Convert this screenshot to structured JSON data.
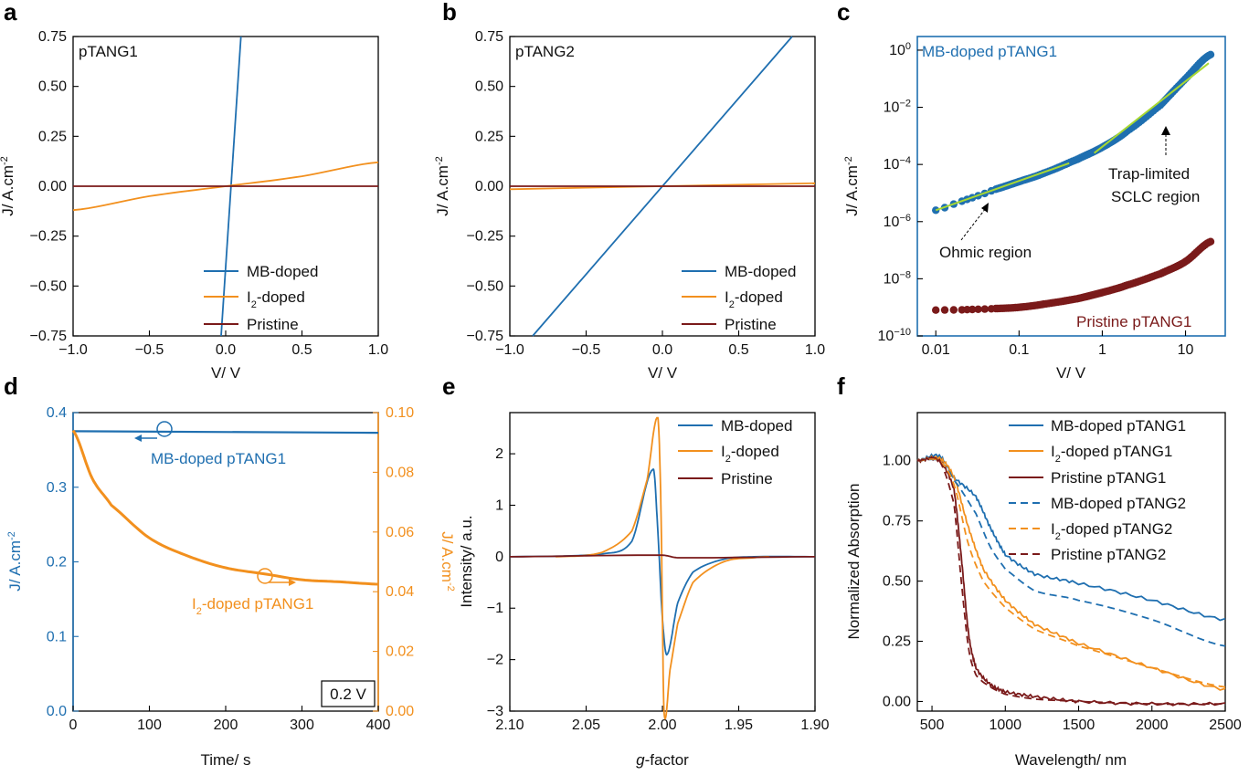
{
  "colors": {
    "mb": "#1f6fb0",
    "i2": "#f2901e",
    "pristine": "#7a1a1a",
    "fit": "#a8d832"
  },
  "chart_data": [
    {
      "panel": "a",
      "type": "line",
      "inset_label": "pTANG1",
      "xlabel": "V/ V",
      "ylabel": "J/ A.cm-2",
      "xlim": [
        -1.0,
        1.0
      ],
      "ylim": [
        -0.75,
        0.75
      ],
      "xticks": [
        "-1.0",
        "-0.5",
        "0.0",
        "0.5",
        "1.0"
      ],
      "yticks": [
        "-0.75",
        "-0.50",
        "-0.25",
        "0.00",
        "0.25",
        "0.50",
        "0.75"
      ],
      "legend": [
        "MB-doped",
        "I2-doped",
        "Pristine"
      ],
      "series": [
        {
          "name": "MB-doped",
          "x": [
            -0.03,
            0.1
          ],
          "y": [
            -0.75,
            0.75
          ]
        },
        {
          "name": "I2-doped",
          "x": [
            -1.0,
            -0.5,
            0.0,
            0.5,
            1.0
          ],
          "y": [
            -0.12,
            -0.05,
            0.0,
            0.05,
            0.12
          ]
        },
        {
          "name": "Pristine",
          "x": [
            -1.0,
            1.0
          ],
          "y": [
            0.0,
            0.0
          ]
        }
      ]
    },
    {
      "panel": "b",
      "type": "line",
      "inset_label": "pTANG2",
      "xlabel": "V/ V",
      "ylabel": "J/ A.cm-2",
      "xlim": [
        -1.0,
        1.0
      ],
      "ylim": [
        -0.75,
        0.75
      ],
      "xticks": [
        "-1.0",
        "-0.5",
        "0.0",
        "0.5",
        "1.0"
      ],
      "yticks": [
        "-0.75",
        "-0.50",
        "-0.25",
        "0.00",
        "0.25",
        "0.50",
        "0.75"
      ],
      "legend": [
        "MB-doped",
        "I2-doped",
        "Pristine"
      ],
      "series": [
        {
          "name": "MB-doped",
          "x": [
            -0.85,
            0.85
          ],
          "y": [
            -0.75,
            0.75
          ]
        },
        {
          "name": "I2-doped",
          "x": [
            -1.0,
            1.0
          ],
          "y": [
            -0.015,
            0.015
          ]
        },
        {
          "name": "Pristine",
          "x": [
            -1.0,
            1.0
          ],
          "y": [
            0.0,
            0.0
          ]
        }
      ]
    },
    {
      "panel": "c",
      "type": "scatter",
      "xscale": "log",
      "yscale": "log",
      "xlabel": "V/ V",
      "ylabel": "J/ A.cm-2",
      "xlim": [
        0.006,
        30
      ],
      "ylim": [
        1e-10,
        3
      ],
      "xticks": [
        "0.01",
        "0.1",
        "1",
        "10"
      ],
      "yticks": [
        "10^0",
        "10^-2",
        "10^-4",
        "10^-6",
        "10^-8",
        "10^-10"
      ],
      "annotations": [
        "MB-doped pTANG1",
        "Trap-limited",
        "SCLC region",
        "Ohmic region",
        "Pristine pTANG1"
      ],
      "series": [
        {
          "name": "MB-doped pTANG1",
          "x": [
            0.01,
            0.02,
            0.03,
            0.05,
            0.1,
            0.2,
            0.5,
            1,
            2,
            5,
            10,
            20
          ],
          "y": [
            2.5e-06,
            5e-06,
            7.5e-06,
            1.3e-05,
            2.5e-05,
            5e-05,
            0.00015,
            0.0004,
            0.0015,
            0.012,
            0.1,
            0.7
          ]
        },
        {
          "name": "Pristine pTANG1",
          "x": [
            0.01,
            0.02,
            0.03,
            0.05,
            0.1,
            0.2,
            0.5,
            1,
            2,
            5,
            10,
            20
          ],
          "y": [
            8e-10,
            8.2e-10,
            8.5e-10,
            9e-10,
            1e-09,
            1.3e-09,
            2e-09,
            3.3e-09,
            6e-09,
            1.5e-08,
            4e-08,
            2e-07
          ]
        }
      ]
    },
    {
      "panel": "d",
      "type": "line",
      "xlabel": "Time/ s",
      "ylabel_left": "J/ A.cm-2",
      "ylabel_right": "J/ A.cm-2",
      "xlim": [
        0,
        400
      ],
      "ylim_left": [
        0,
        0.4
      ],
      "ylim_right": [
        0,
        0.1
      ],
      "xticks": [
        "0",
        "100",
        "200",
        "300",
        "400"
      ],
      "yticks_left": [
        "0.0",
        "0.1",
        "0.2",
        "0.3",
        "0.4"
      ],
      "yticks_right": [
        "0.00",
        "0.02",
        "0.04",
        "0.06",
        "0.08",
        "0.10"
      ],
      "annotations": [
        "MB-doped pTANG1",
        "I2-doped pTANG1",
        "0.2 V"
      ],
      "series": [
        {
          "name": "MB-doped pTANG1",
          "axis": "left",
          "x": [
            0,
            400
          ],
          "y": [
            0.375,
            0.373
          ]
        },
        {
          "name": "I2-doped pTANG1",
          "axis": "right",
          "x": [
            0,
            25,
            50,
            100,
            150,
            200,
            250,
            300,
            350,
            400
          ],
          "y": [
            0.094,
            0.078,
            0.069,
            0.058,
            0.052,
            0.048,
            0.046,
            0.044,
            0.0433,
            0.0425
          ]
        }
      ]
    },
    {
      "panel": "e",
      "type": "line",
      "xlabel": "g-factor",
      "ylabel": "Intensity/ a.u.",
      "xlim": [
        2.1,
        1.9
      ],
      "ylim": [
        -3,
        2.8
      ],
      "xticks": [
        "2.10",
        "2.05",
        "2.00",
        "1.95",
        "1.90"
      ],
      "yticks": [
        "-3",
        "-2",
        "-1",
        "0",
        "1",
        "2"
      ],
      "legend": [
        "MB-doped",
        "I2-doped",
        "Pristine"
      ],
      "series": [
        {
          "name": "MB-doped",
          "x": [
            2.1,
            2.04,
            2.02,
            2.006,
            2.003,
            2.0,
            1.997,
            1.99,
            1.98,
            1.96,
            1.94,
            1.9
          ],
          "y": [
            0,
            0.05,
            0.3,
            1.7,
            0.5,
            -1.2,
            -1.9,
            -0.9,
            -0.3,
            -0.05,
            0,
            0
          ]
        },
        {
          "name": "I2-doped",
          "x": [
            2.07,
            2.04,
            2.02,
            2.01,
            2.003,
            2.001,
            1.999,
            1.995,
            1.99,
            1.98,
            1.96,
            1.94,
            1.93
          ],
          "y": [
            0,
            0.08,
            0.5,
            1.5,
            2.7,
            1.0,
            -3.0,
            -2.2,
            -1.3,
            -0.5,
            -0.1,
            -0.02,
            0
          ]
        },
        {
          "name": "Pristine",
          "x": [
            2.1,
            2.0,
            1.99,
            1.9
          ],
          "y": [
            0,
            0.03,
            -0.02,
            0
          ]
        }
      ]
    },
    {
      "panel": "f",
      "type": "line",
      "xlabel": "Wavelength/ nm",
      "ylabel": "Normalized Absorption",
      "xlim": [
        400,
        2500
      ],
      "ylim": [
        -0.04,
        1.2
      ],
      "xticks": [
        "500",
        "1000",
        "1500",
        "2000",
        "2500"
      ],
      "yticks": [
        "0.00",
        "0.25",
        "0.50",
        "0.75",
        "1.00"
      ],
      "legend": [
        "MB-doped pTANG1",
        "I2-doped pTANG1",
        "Pristine pTANG1",
        "MB-doped pTANG2",
        "I2-doped pTANG2",
        "Pristine pTANG2"
      ],
      "series": [
        {
          "name": "MB-doped pTANG1",
          "x": [
            400,
            550,
            650,
            800,
            900,
            1000,
            1200,
            1500,
            2000,
            2500
          ],
          "y": [
            1.0,
            1.02,
            0.93,
            0.85,
            0.72,
            0.61,
            0.53,
            0.49,
            0.42,
            0.34
          ]
        },
        {
          "name": "I2-doped pTANG1",
          "x": [
            400,
            550,
            650,
            750,
            850,
            1000,
            1200,
            1500,
            2000,
            2500
          ],
          "y": [
            1.0,
            1.01,
            0.93,
            0.72,
            0.55,
            0.42,
            0.32,
            0.24,
            0.14,
            0.05
          ]
        },
        {
          "name": "Pristine pTANG1",
          "x": [
            400,
            550,
            650,
            700,
            750,
            800,
            900,
            1000,
            1200,
            1500,
            2000,
            2500
          ],
          "y": [
            1.0,
            1.0,
            0.88,
            0.6,
            0.28,
            0.14,
            0.07,
            0.04,
            0.02,
            0.0,
            -0.01,
            -0.01
          ]
        },
        {
          "name": "MB-doped pTANG2",
          "x": [
            400,
            550,
            650,
            800,
            900,
            1000,
            1200,
            1500,
            2000,
            2500
          ],
          "y": [
            1.0,
            1.0,
            0.92,
            0.78,
            0.64,
            0.55,
            0.46,
            0.42,
            0.34,
            0.23
          ]
        },
        {
          "name": "I2-doped pTANG2",
          "x": [
            400,
            550,
            650,
            750,
            850,
            1000,
            1200,
            1500,
            2000,
            2500
          ],
          "y": [
            1.0,
            1.0,
            0.9,
            0.65,
            0.5,
            0.39,
            0.3,
            0.23,
            0.14,
            0.06
          ]
        },
        {
          "name": "Pristine pTANG2",
          "x": [
            400,
            550,
            650,
            700,
            750,
            800,
            900,
            1000,
            1200,
            1500,
            2000,
            2500
          ],
          "y": [
            1.0,
            1.0,
            0.82,
            0.5,
            0.22,
            0.11,
            0.06,
            0.03,
            0.01,
            0.0,
            -0.01,
            -0.01
          ]
        }
      ]
    }
  ]
}
